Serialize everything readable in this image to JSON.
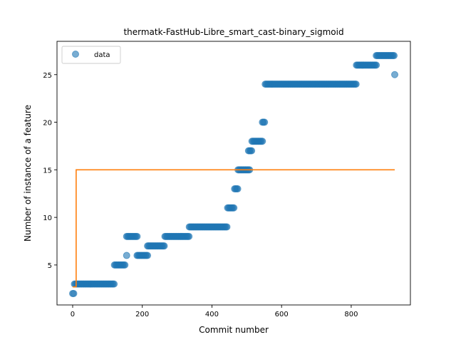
{
  "chart_data": {
    "type": "scatter",
    "title": "thermatk-FastHub-Libre_smart_cast-binary_sigmoid",
    "xlabel": "Commit number",
    "ylabel": "Number of instance of a feature",
    "xlim": [
      -45,
      970
    ],
    "ylim": [
      0.8,
      28.5
    ],
    "xticks": [
      0,
      200,
      400,
      600,
      800
    ],
    "yticks": [
      5,
      10,
      15,
      20,
      25
    ],
    "legend": {
      "position": "top-left",
      "entries": [
        "data"
      ]
    },
    "grid": false,
    "series": [
      {
        "name": "data",
        "kind": "scatter",
        "color": "#1f77b4",
        "segments": [
          {
            "x_start": 0,
            "x_end": 5,
            "y": 2
          },
          {
            "x_start": 5,
            "x_end": 120,
            "y": 3
          },
          {
            "x_start": 120,
            "x_end": 150,
            "y": 5
          },
          {
            "x_start": 155,
            "x_end": 157,
            "y": 6
          },
          {
            "x_start": 155,
            "x_end": 185,
            "y": 8
          },
          {
            "x_start": 185,
            "x_end": 215,
            "y": 6
          },
          {
            "x_start": 215,
            "x_end": 265,
            "y": 7
          },
          {
            "x_start": 265,
            "x_end": 335,
            "y": 8
          },
          {
            "x_start": 335,
            "x_end": 445,
            "y": 9
          },
          {
            "x_start": 445,
            "x_end": 465,
            "y": 11
          },
          {
            "x_start": 465,
            "x_end": 475,
            "y": 13
          },
          {
            "x_start": 475,
            "x_end": 510,
            "y": 15
          },
          {
            "x_start": 505,
            "x_end": 515,
            "y": 17
          },
          {
            "x_start": 515,
            "x_end": 545,
            "y": 18
          },
          {
            "x_start": 545,
            "x_end": 553,
            "y": 20
          },
          {
            "x_start": 553,
            "x_end": 815,
            "y": 24
          },
          {
            "x_start": 815,
            "x_end": 872,
            "y": 26
          },
          {
            "x_start": 872,
            "x_end": 925,
            "y": 27
          },
          {
            "x_start": 925,
            "x_end": 925,
            "y": 25
          }
        ]
      },
      {
        "name": "",
        "kind": "line",
        "color": "#ff7f0e",
        "points": [
          [
            0,
            2.7
          ],
          [
            10,
            2.7
          ],
          [
            10,
            15
          ],
          [
            925,
            15
          ]
        ]
      }
    ]
  }
}
